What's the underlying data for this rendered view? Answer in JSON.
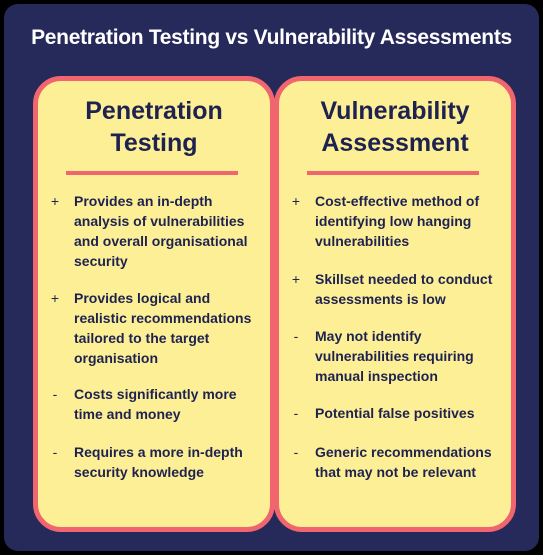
{
  "title": "Penetration Testing vs Vulnerability Assessments",
  "colors": {
    "background": "#262a5a",
    "card_fill": "#fdef96",
    "card_border": "#f0656e",
    "text": "#1e2250"
  },
  "cards": [
    {
      "title_line1": "Penetration",
      "title_line2": "Testing",
      "items": [
        {
          "marker": "+",
          "text": "Provides an in-depth analysis of vulnerabilities and overall organisational security"
        },
        {
          "marker": "+",
          "text": "Provides logical and realistic recommendations tailored to the target organisation"
        },
        {
          "marker": "-",
          "text": "Costs significantly more time and money"
        },
        {
          "marker": "-",
          "text": "Requires a more in-depth security knowledge"
        }
      ]
    },
    {
      "title_line1": "Vulnerability",
      "title_line2": "Assessment",
      "items": [
        {
          "marker": "+",
          "text": "Cost-effective method of identifying low hanging vulnerabilities"
        },
        {
          "marker": "+",
          "text": "Skillset needed to conduct assessments is low"
        },
        {
          "marker": "-",
          "text": "May not identify vulnerabilities requiring manual inspection"
        },
        {
          "marker": "-",
          "text": "Potential false positives"
        },
        {
          "marker": "-",
          "text": "Generic recommendations that may not be relevant"
        }
      ]
    }
  ]
}
